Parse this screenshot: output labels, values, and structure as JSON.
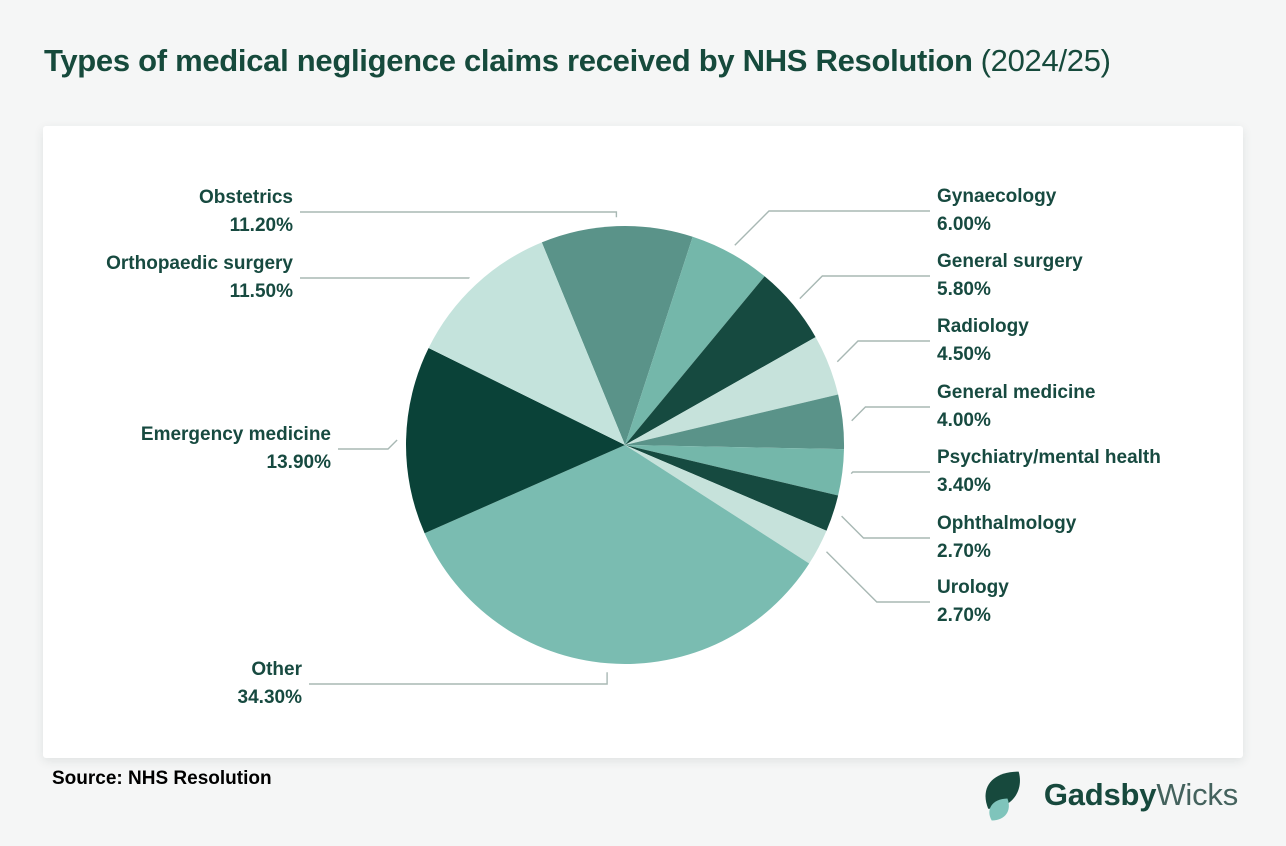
{
  "title": {
    "main": "Types of medical negligence claims received by NHS Resolution",
    "suffix": "(2024/25)"
  },
  "footer": {
    "source": "Source: NHS Resolution",
    "brand_bold": "Gadsby",
    "brand_light": "Wicks",
    "logo_icon": "leaf-icon"
  },
  "colors": {
    "page_bg": "#f5f6f6",
    "card_bg": "#ffffff",
    "title_text": "#164a3c",
    "label_text": "#174a40",
    "leader_line": "#a8b8b4",
    "palette_dark": "#164a40",
    "palette_darkest": "#0a4238",
    "palette_sage": "#5a9389",
    "palette_teal": "#74b7aa",
    "palette_mint": "#c6e2db"
  },
  "chart_data": {
    "type": "pie",
    "title": "Types of medical negligence claims received by NHS Resolution (2024/25)",
    "legend_position": "callout-labels",
    "grid": false,
    "start_angle_deg": -22.32,
    "direction": "clockwise",
    "slices": [
      {
        "label": "Obstetrics",
        "value": 11.2,
        "pct": "11.20%",
        "color": "#5a9389",
        "side": "left"
      },
      {
        "label": "Gynaecology",
        "value": 6.0,
        "pct": "6.00%",
        "color": "#74b7aa",
        "side": "right"
      },
      {
        "label": "General surgery",
        "value": 5.8,
        "pct": "5.80%",
        "color": "#164a40",
        "side": "right"
      },
      {
        "label": "Radiology",
        "value": 4.5,
        "pct": "4.50%",
        "color": "#c6e2db",
        "side": "right"
      },
      {
        "label": "General medicine",
        "value": 4.0,
        "pct": "4.00%",
        "color": "#5a9389",
        "side": "right"
      },
      {
        "label": "Psychiatry/mental health",
        "value": 3.4,
        "pct": "3.40%",
        "color": "#74b7aa",
        "side": "right"
      },
      {
        "label": "Ophthalmology",
        "value": 2.7,
        "pct": "2.70%",
        "color": "#164a40",
        "side": "right"
      },
      {
        "label": "Urology",
        "value": 2.7,
        "pct": "2.70%",
        "color": "#c6e2db",
        "side": "right"
      },
      {
        "label": "Other",
        "value": 34.3,
        "pct": "34.30%",
        "color": "#7abcb1",
        "side": "left"
      },
      {
        "label": "Emergency medicine",
        "value": 13.9,
        "pct": "13.90%",
        "color": "#0a4238",
        "side": "left"
      },
      {
        "label": "Orthopaedic surgery",
        "value": 11.5,
        "pct": "11.50%",
        "color": "#c4e3dc",
        "side": "left"
      }
    ]
  }
}
